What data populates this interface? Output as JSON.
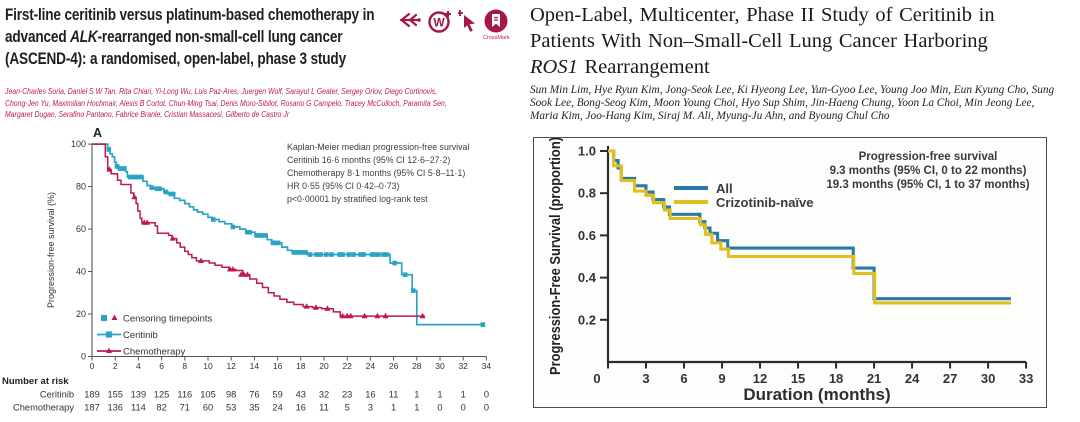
{
  "colors": {
    "crimson": "#a5164a",
    "lancet_teal": "#2ba4c4",
    "lancet_red": "#bf1750",
    "jco_blue": "#2a7aa9",
    "jco_yellow": "#e3bf1e"
  },
  "left_paper": {
    "title": {
      "line1": "First-line ceritinib versus platinum-based chemotherapy in",
      "line2_pre": "advanced ",
      "line2_italic": "ALK",
      "line2_post": "-rearranged non-small-cell lung cancer",
      "line3": "(ASCEND-4): a randomised, open-label, phase 3 study"
    },
    "authors": {
      "line1": "Jean-Charles Soria, Daniel S W Tan, Rita Chiari, Yi-Long Wu, Luis Paz-Ares, Juergen Wolf, Sarayut L Geater, Sergey Orlov, Diego Cortinovis,",
      "line2": "Chong-Jen Yu, Maximilian Hochmair, Alexis B Cortot, Chun-Ming Tsai, Denis Moro-Sibilot, Rosario G Campelo, Tracey McCulloch, Paramita Sen,",
      "line3": "Margaret Dugan, Serafino Pantano, Fabrice Branle, Cristian Massacesi, Gilberto de Castro Jr"
    },
    "icons": {
      "w_letter": "W",
      "crossmark_label": "CrossMark"
    }
  },
  "right_paper": {
    "title": {
      "line1": "Open-Label, Multicenter, Phase II Study of Ceritinib in",
      "line2": "Patients With Non–Small-Cell Lung Cancer Harboring",
      "line3_italic": "ROS1",
      "line3_post": " Rearrangement"
    },
    "authors": {
      "line1": "Sun Min Lim, Hye Ryun Kim, Jong-Seok Lee, Ki Hyeong Lee, Yun-Gyoo Lee, Young Joo Min, Eun Kyung Cho, Sung",
      "line2": "Sook Lee, Bong-Seog Kim, Moon Young Choi, Hyo Sup Shim, Jin-Haeng Chung, Yoon La Choi, Min Jeong Lee,",
      "line3": "Maria Kim, Joo-Hang Kim, Siraj M. Ali, Myung-Ju Ahn, and Byoung Chul Cho"
    }
  },
  "chart_data": [
    {
      "type": "line",
      "subtype": "kaplan-meier-step",
      "panel_label": "A",
      "title": "",
      "xlabel": "",
      "ylabel": "Progression-free survival (%)",
      "xlim": [
        0,
        34
      ],
      "ylim": [
        0,
        100
      ],
      "xticks": [
        0,
        2,
        4,
        6,
        8,
        10,
        12,
        14,
        16,
        18,
        20,
        22,
        24,
        26,
        28,
        30,
        32,
        34
      ],
      "yticks": [
        0,
        20,
        40,
        60,
        80,
        100
      ],
      "grid": false,
      "legend_position": "lower-left-inside",
      "legend": [
        {
          "label": "Censoring timepoints",
          "type": "markers"
        },
        {
          "label": "Ceritinib",
          "type": "line-marker",
          "color": "#2ba4c4"
        },
        {
          "label": "Chemotherapy",
          "type": "line-marker",
          "color": "#bf1750"
        }
      ],
      "annotation": [
        "Kaplan-Meier median progression-free survival",
        "Ceritinib 16·6 months (95% CI 12·6–27·2)",
        "Chemotherapy 8·1 months (95% CI 5·8–11·1)",
        "HR 0·55 (95% CI 0·42–0·73)",
        "p<0·00001 by stratified log-rank test"
      ],
      "series": [
        {
          "name": "Ceritinib",
          "color": "#2ba4c4",
          "marker": "square",
          "steps": [
            [
              0,
              100
            ],
            [
              1.35,
              97.5
            ],
            [
              1.55,
              95.5
            ],
            [
              1.75,
              94
            ],
            [
              1.95,
              91.5
            ],
            [
              2.1,
              89.5
            ],
            [
              2.35,
              88.5
            ],
            [
              2.9,
              87
            ],
            [
              3.05,
              84.5
            ],
            [
              4.4,
              82.5
            ],
            [
              4.75,
              80.5
            ],
            [
              5.05,
              79.5
            ],
            [
              5.35,
              79
            ],
            [
              6.2,
              77.5
            ],
            [
              6.55,
              76.5
            ],
            [
              7.1,
              74.5
            ],
            [
              7.55,
              73.5
            ],
            [
              8.0,
              72
            ],
            [
              8.4,
              70.5
            ],
            [
              8.75,
              69
            ],
            [
              9.1,
              68
            ],
            [
              9.55,
              67
            ],
            [
              10.0,
              65.5
            ],
            [
              10.4,
              64.5
            ],
            [
              10.95,
              63.5
            ],
            [
              11.45,
              62.5
            ],
            [
              12.05,
              61
            ],
            [
              12.75,
              60
            ],
            [
              13.25,
              58.5
            ],
            [
              14.05,
              57
            ],
            [
              15.1,
              55
            ],
            [
              15.5,
              53.5
            ],
            [
              16.35,
              51.5
            ],
            [
              16.85,
              50
            ],
            [
              17.25,
              49
            ],
            [
              18.55,
              48
            ],
            [
              25.7,
              44
            ],
            [
              26.7,
              38.5
            ],
            [
              27.6,
              31
            ],
            [
              28.0,
              15
            ],
            [
              33.8,
              15
            ]
          ],
          "censors": [
            [
              1.45,
              97.5
            ],
            [
              2.15,
              89.5
            ],
            [
              2.4,
              88.5
            ],
            [
              2.6,
              88.5
            ],
            [
              2.8,
              88.5
            ],
            [
              3.3,
              84.5
            ],
            [
              3.55,
              84.5
            ],
            [
              3.8,
              84.5
            ],
            [
              4.05,
              84.5
            ],
            [
              4.25,
              84.5
            ],
            [
              5.15,
              79.5
            ],
            [
              5.6,
              79
            ],
            [
              5.85,
              79
            ],
            [
              6.35,
              77.5
            ],
            [
              6.8,
              76.5
            ],
            [
              7.0,
              76.5
            ],
            [
              10.45,
              64.5
            ],
            [
              12.15,
              61
            ],
            [
              13.4,
              58.5
            ],
            [
              13.6,
              58.5
            ],
            [
              14.2,
              57
            ],
            [
              14.45,
              57
            ],
            [
              14.7,
              57
            ],
            [
              14.95,
              57
            ],
            [
              15.6,
              53.5
            ],
            [
              15.85,
              53.5
            ],
            [
              16.05,
              53.5
            ],
            [
              17.4,
              49
            ],
            [
              17.65,
              49
            ],
            [
              17.9,
              49
            ],
            [
              18.15,
              49
            ],
            [
              18.4,
              49
            ],
            [
              18.8,
              48
            ],
            [
              19.35,
              48
            ],
            [
              19.7,
              48
            ],
            [
              20.2,
              48
            ],
            [
              20.65,
              48
            ],
            [
              21.35,
              48
            ],
            [
              21.6,
              48
            ],
            [
              22.15,
              48
            ],
            [
              22.55,
              48
            ],
            [
              23.15,
              48
            ],
            [
              23.4,
              48
            ],
            [
              24.15,
              48
            ],
            [
              24.4,
              48
            ],
            [
              24.7,
              48
            ],
            [
              25.15,
              48
            ],
            [
              25.4,
              48
            ],
            [
              26.1,
              44
            ],
            [
              27.0,
              38.5
            ],
            [
              27.7,
              31
            ],
            [
              33.7,
              15
            ]
          ]
        },
        {
          "name": "Chemotherapy",
          "color": "#bf1750",
          "marker": "triangle",
          "steps": [
            [
              0,
              100
            ],
            [
              1.15,
              94
            ],
            [
              1.35,
              88
            ],
            [
              1.65,
              86
            ],
            [
              2.2,
              83
            ],
            [
              2.5,
              81
            ],
            [
              3.35,
              77
            ],
            [
              3.6,
              75
            ],
            [
              3.8,
              72
            ],
            [
              3.95,
              68.5
            ],
            [
              4.15,
              65
            ],
            [
              4.3,
              63
            ],
            [
              5.45,
              61.5
            ],
            [
              5.65,
              58
            ],
            [
              6.6,
              57
            ],
            [
              6.9,
              55.5
            ],
            [
              7.3,
              53.5
            ],
            [
              7.6,
              51.5
            ],
            [
              8.0,
              49.5
            ],
            [
              8.3,
              48
            ],
            [
              8.6,
              46.5
            ],
            [
              9.0,
              45
            ],
            [
              10.1,
              44
            ],
            [
              10.6,
              43
            ],
            [
              11.2,
              42
            ],
            [
              11.8,
              41
            ],
            [
              12.4,
              40.5
            ],
            [
              13.0,
              38.5
            ],
            [
              13.6,
              36.5
            ],
            [
              14.2,
              34.5
            ],
            [
              14.7,
              32.5
            ],
            [
              15.2,
              30
            ],
            [
              15.7,
              28.5
            ],
            [
              16.2,
              27
            ],
            [
              16.8,
              25.5
            ],
            [
              17.4,
              24.5
            ],
            [
              18.2,
              23.5
            ],
            [
              19.0,
              23
            ],
            [
              19.8,
              22.5
            ],
            [
              20.8,
              21
            ],
            [
              21.4,
              19
            ],
            [
              28.7,
              19
            ]
          ],
          "censors": [
            [
              1.5,
              88
            ],
            [
              3.65,
              75
            ],
            [
              4.5,
              63
            ],
            [
              4.75,
              63
            ],
            [
              6.95,
              55.5
            ],
            [
              9.4,
              45
            ],
            [
              11.9,
              41
            ],
            [
              12.15,
              41
            ],
            [
              12.85,
              38.5
            ],
            [
              13.1,
              38.5
            ],
            [
              13.4,
              38.5
            ],
            [
              18.5,
              23.5
            ],
            [
              19.3,
              23
            ],
            [
              20.3,
              22.5
            ],
            [
              21.6,
              19
            ],
            [
              22.0,
              19
            ],
            [
              22.3,
              19
            ],
            [
              23.5,
              19
            ],
            [
              24.6,
              19
            ],
            [
              25.3,
              19
            ],
            [
              28.5,
              19
            ]
          ]
        }
      ],
      "number_at_risk": {
        "heading": "Number at risk",
        "rows": [
          {
            "label": "Ceritinib",
            "values": [
              189,
              155,
              139,
              125,
              116,
              105,
              98,
              76,
              59,
              43,
              32,
              23,
              16,
              11,
              1,
              1,
              1,
              0
            ]
          },
          {
            "label": "Chemotherapy",
            "values": [
              187,
              136,
              114,
              82,
              71,
              60,
              53,
              35,
              24,
              16,
              11,
              5,
              3,
              1,
              1,
              0,
              0,
              0
            ]
          }
        ]
      }
    },
    {
      "type": "line",
      "subtype": "kaplan-meier-step",
      "title": "",
      "xlabel": "Duration (months)",
      "ylabel": "Progression-Free Survival (proportion)",
      "xlim": [
        0,
        33
      ],
      "ylim": [
        0,
        1.0
      ],
      "xticks": [
        0,
        3,
        6,
        9,
        12,
        15,
        18,
        21,
        24,
        27,
        30,
        33
      ],
      "yticks": [
        0.2,
        0.4,
        0.6,
        0.8,
        1.0
      ],
      "ytick_labels": [
        "0.2",
        "0.4",
        "0.6",
        "0.8",
        "1.0"
      ],
      "grid": false,
      "legend_position": "upper-middle-inside",
      "legend": [
        {
          "label": "All",
          "type": "line",
          "color": "#2a7aa9"
        },
        {
          "label": "Crizotinib-naïve",
          "type": "line",
          "color": "#e3bf1e"
        }
      ],
      "annotation": [
        "Progression-free survival",
        "9.3 months (95% CI, 0 to 22 months)",
        "19.3 months (95% CI, 1 to 37 months)"
      ],
      "series": [
        {
          "name": "All",
          "color": "#2a7aa9",
          "steps": [
            [
              0,
              1.0
            ],
            [
              0.45,
              0.955
            ],
            [
              0.8,
              0.92
            ],
            [
              1.05,
              0.87
            ],
            [
              2.1,
              0.835
            ],
            [
              3.0,
              0.805
            ],
            [
              3.55,
              0.77
            ],
            [
              4.4,
              0.735
            ],
            [
              4.85,
              0.7
            ],
            [
              7.25,
              0.665
            ],
            [
              7.65,
              0.635
            ],
            [
              8.05,
              0.61
            ],
            [
              8.65,
              0.575
            ],
            [
              9.45,
              0.54
            ],
            [
              19.35,
              0.445
            ],
            [
              21.0,
              0.3
            ],
            [
              31.8,
              0.3
            ]
          ]
        },
        {
          "name": "Crizotinib-naïve",
          "color": "#e3bf1e",
          "steps": [
            [
              0,
              1.0
            ],
            [
              0.45,
              0.93
            ],
            [
              1.05,
              0.86
            ],
            [
              2.1,
              0.81
            ],
            [
              3.0,
              0.79
            ],
            [
              3.6,
              0.755
            ],
            [
              4.45,
              0.72
            ],
            [
              4.9,
              0.68
            ],
            [
              7.3,
              0.65
            ],
            [
              7.7,
              0.605
            ],
            [
              8.2,
              0.565
            ],
            [
              8.9,
              0.535
            ],
            [
              9.5,
              0.5
            ],
            [
              19.4,
              0.42
            ],
            [
              21.05,
              0.28
            ],
            [
              31.8,
              0.28
            ]
          ]
        }
      ]
    }
  ]
}
